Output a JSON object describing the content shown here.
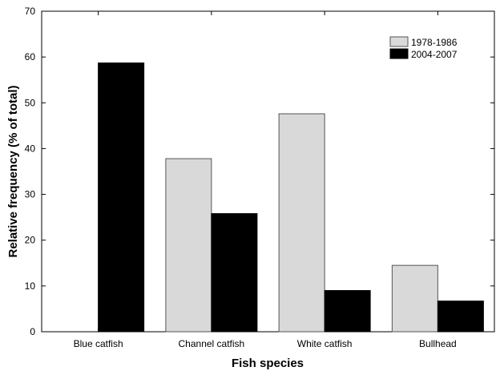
{
  "chart_data": {
    "type": "bar",
    "title": "",
    "xlabel": "Fish species",
    "ylabel": "Relative frequency (% of total)",
    "categories": [
      "Blue catfish",
      "Channel catfish",
      "White catfish",
      "Bullhead"
    ],
    "series": [
      {
        "name": "1978-1986",
        "values": [
          0,
          37.8,
          47.6,
          14.5
        ],
        "color": "#d9d9d9"
      },
      {
        "name": "2004-2007",
        "values": [
          58.7,
          25.8,
          9.0,
          6.7
        ],
        "color": "#000000"
      }
    ],
    "ylim": [
      0,
      70
    ],
    "yticks": [
      0,
      10,
      20,
      30,
      40,
      50,
      60,
      70
    ],
    "grid": false,
    "legend_position": "top-right"
  }
}
